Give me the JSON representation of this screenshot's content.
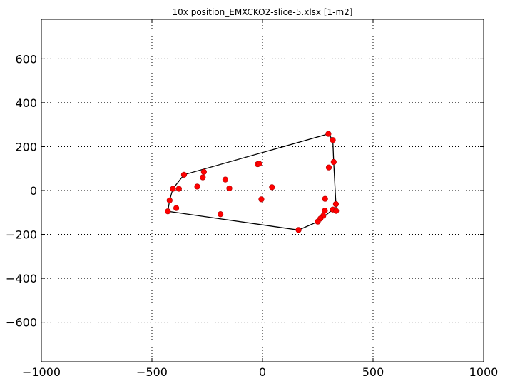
{
  "chart_data": {
    "type": "scatter",
    "title": "10x position_EMXCKO2-slice-5.xlsx   [1-m2]",
    "xlabel": "",
    "ylabel": "",
    "xlim": [
      -1000,
      1000
    ],
    "ylim": [
      -780,
      780
    ],
    "xticks": [
      -1000,
      -500,
      0,
      500,
      1000
    ],
    "yticks": [
      -600,
      -400,
      -200,
      0,
      200,
      400,
      600
    ],
    "xtick_labels": [
      "−1000",
      "−500",
      "0",
      "500",
      "1000"
    ],
    "ytick_labels": [
      "−600",
      "−400",
      "−200",
      "0",
      "200",
      "400",
      "600"
    ],
    "grid": true,
    "point_color": "#ff0000",
    "hull_color": "#000000",
    "points": [
      [
        298,
        258
      ],
      [
        318,
        230
      ],
      [
        322,
        130
      ],
      [
        300,
        105
      ],
      [
        -355,
        72
      ],
      [
        -265,
        85
      ],
      [
        -270,
        60
      ],
      [
        -168,
        50
      ],
      [
        -295,
        18
      ],
      [
        -150,
        10
      ],
      [
        -405,
        8
      ],
      [
        -378,
        8
      ],
      [
        -22,
        120
      ],
      [
        -15,
        122
      ],
      [
        43,
        15
      ],
      [
        -5,
        -40
      ],
      [
        283,
        -38
      ],
      [
        -420,
        -45
      ],
      [
        -390,
        -80
      ],
      [
        -428,
        -95
      ],
      [
        -190,
        -108
      ],
      [
        332,
        -62
      ],
      [
        318,
        -87
      ],
      [
        333,
        -93
      ],
      [
        282,
        -92
      ],
      [
        275,
        -115
      ],
      [
        262,
        -128
      ],
      [
        250,
        -142
      ],
      [
        163,
        -180
      ]
    ],
    "hull": [
      [
        298,
        258
      ],
      [
        318,
        230
      ],
      [
        322,
        130
      ],
      [
        332,
        -62
      ],
      [
        333,
        -93
      ],
      [
        318,
        -87
      ],
      [
        250,
        -142
      ],
      [
        163,
        -180
      ],
      [
        -428,
        -95
      ],
      [
        -420,
        -45
      ],
      [
        -405,
        8
      ],
      [
        -355,
        72
      ],
      [
        298,
        258
      ]
    ]
  }
}
